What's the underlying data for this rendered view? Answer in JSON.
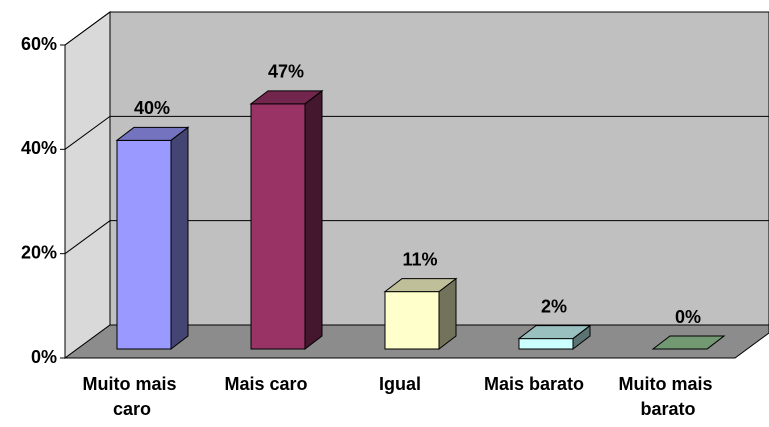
{
  "chart_data": {
    "type": "bar3d",
    "categories": [
      "Muito mais caro",
      "Mais caro",
      "Igual",
      "Mais barato",
      "Muito mais barato"
    ],
    "values": [
      40,
      47,
      11,
      2,
      0
    ],
    "value_labels": [
      "40%",
      "47%",
      "11%",
      "2%",
      "0%"
    ],
    "colors": [
      "#9999ff",
      "#993366",
      "#ffffcc",
      "#ccffff",
      "#99cc99"
    ],
    "ylim": [
      0,
      60
    ],
    "yticks": [
      {
        "value": 0,
        "label": "0%"
      },
      {
        "value": 20,
        "label": "20%"
      },
      {
        "value": 40,
        "label": "40%"
      },
      {
        "value": 60,
        "label": "60%"
      }
    ],
    "grid": true
  }
}
